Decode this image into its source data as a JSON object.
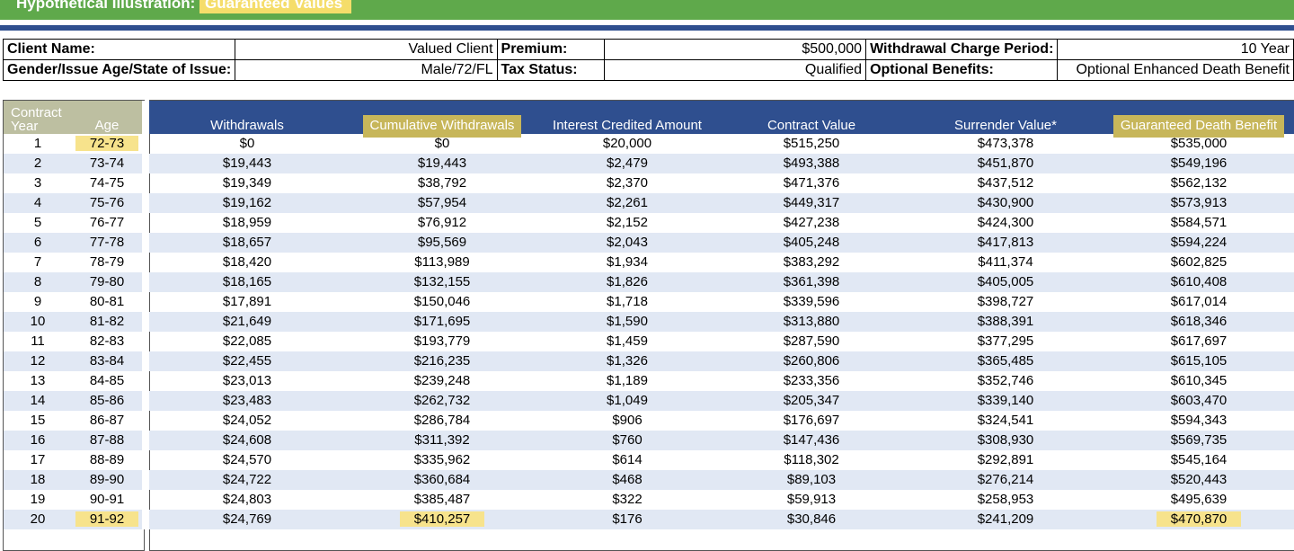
{
  "title": {
    "prefix": "Hypothetical Illustration:",
    "highlight": "Guaranteed Values"
  },
  "info": {
    "client_name_label": "Client Name:",
    "client_name_value": "Valued Client",
    "premium_label": "Premium:",
    "premium_value": "$500,000",
    "withdrawal_charge_label": "Withdrawal Charge Period:",
    "withdrawal_charge_value": "10 Year",
    "gender_label": "Gender/Issue Age/State of Issue:",
    "gender_value": "Male/72/FL",
    "tax_status_label": "Tax Status:",
    "tax_status_value": "Qualified",
    "optional_benefits_label": "Optional Benefits:",
    "optional_benefits_value": "Optional Enhanced Death Benefit"
  },
  "table": {
    "headers": {
      "contract_year_line1": "Contract",
      "contract_year_line2": "Year",
      "age": "Age",
      "withdrawals": "Withdrawals",
      "cumulative_withdrawals": "Cumulative Withdrawals",
      "interest_credited": "Interest Credited Amount",
      "contract_value": "Contract Value",
      "surrender_value": "Surrender Value*",
      "guaranteed_death_benefit": "Guaranteed Death Benefit"
    },
    "rows": [
      [
        "1",
        "72-73",
        "$0",
        "$0",
        "$20,000",
        "$515,250",
        "$473,378",
        "$535,000"
      ],
      [
        "2",
        "73-74",
        "$19,443",
        "$19,443",
        "$2,479",
        "$493,388",
        "$451,870",
        "$549,196"
      ],
      [
        "3",
        "74-75",
        "$19,349",
        "$38,792",
        "$2,370",
        "$471,376",
        "$437,512",
        "$562,132"
      ],
      [
        "4",
        "75-76",
        "$19,162",
        "$57,954",
        "$2,261",
        "$449,317",
        "$430,900",
        "$573,913"
      ],
      [
        "5",
        "76-77",
        "$18,959",
        "$76,912",
        "$2,152",
        "$427,238",
        "$424,300",
        "$584,571"
      ],
      [
        "6",
        "77-78",
        "$18,657",
        "$95,569",
        "$2,043",
        "$405,248",
        "$417,813",
        "$594,224"
      ],
      [
        "7",
        "78-79",
        "$18,420",
        "$113,989",
        "$1,934",
        "$383,292",
        "$411,374",
        "$602,825"
      ],
      [
        "8",
        "79-80",
        "$18,165",
        "$132,155",
        "$1,826",
        "$361,398",
        "$405,005",
        "$610,408"
      ],
      [
        "9",
        "80-81",
        "$17,891",
        "$150,046",
        "$1,718",
        "$339,596",
        "$398,727",
        "$617,014"
      ],
      [
        "10",
        "81-82",
        "$21,649",
        "$171,695",
        "$1,590",
        "$313,880",
        "$388,391",
        "$618,346"
      ],
      [
        "11",
        "82-83",
        "$22,085",
        "$193,779",
        "$1,459",
        "$287,590",
        "$377,295",
        "$617,697"
      ],
      [
        "12",
        "83-84",
        "$22,455",
        "$216,235",
        "$1,326",
        "$260,806",
        "$365,485",
        "$615,105"
      ],
      [
        "13",
        "84-85",
        "$23,013",
        "$239,248",
        "$1,189",
        "$233,356",
        "$352,746",
        "$610,345"
      ],
      [
        "14",
        "85-86",
        "$23,483",
        "$262,732",
        "$1,049",
        "$205,347",
        "$339,140",
        "$603,470"
      ],
      [
        "15",
        "86-87",
        "$24,052",
        "$286,784",
        "$906",
        "$176,697",
        "$324,541",
        "$594,343"
      ],
      [
        "16",
        "87-88",
        "$24,608",
        "$311,392",
        "$760",
        "$147,436",
        "$308,930",
        "$569,735"
      ],
      [
        "17",
        "88-89",
        "$24,570",
        "$335,962",
        "$614",
        "$118,302",
        "$292,891",
        "$545,164"
      ],
      [
        "18",
        "89-90",
        "$24,722",
        "$360,684",
        "$468",
        "$89,103",
        "$276,214",
        "$520,443"
      ],
      [
        "19",
        "90-91",
        "$24,803",
        "$385,487",
        "$322",
        "$59,913",
        "$258,953",
        "$495,639"
      ],
      [
        "20",
        "91-92",
        "$24,769",
        "$410,257",
        "$176",
        "$30,846",
        "$241,209",
        "$470,870"
      ]
    ]
  }
}
